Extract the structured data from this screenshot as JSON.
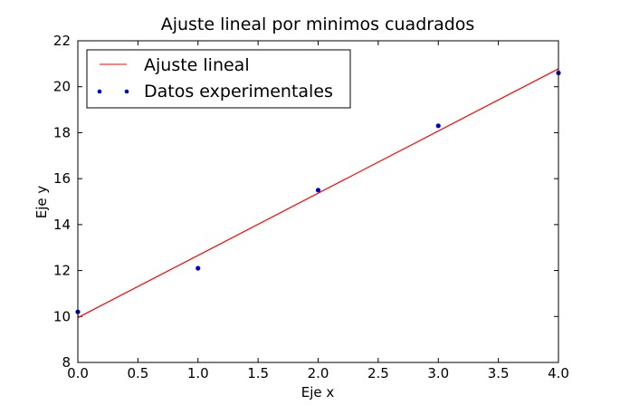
{
  "chart_data": {
    "type": "line",
    "title": "Ajuste lineal por minimos cuadrados",
    "xlabel": "Eje x",
    "ylabel": "Eje y",
    "xlim": [
      0,
      4
    ],
    "ylim": [
      8,
      22
    ],
    "xticks": [
      "0.0",
      "0.5",
      "1.0",
      "1.5",
      "2.0",
      "2.5",
      "3.0",
      "3.5",
      "4.0"
    ],
    "yticks": [
      "8",
      "10",
      "12",
      "14",
      "16",
      "18",
      "20",
      "22"
    ],
    "grid": false,
    "legend_position": "top-left",
    "series": [
      {
        "name": "Ajuste lineal",
        "kind": "line",
        "color": "#ff0000",
        "x": [
          0,
          4
        ],
        "y": [
          9.95,
          20.78
        ]
      },
      {
        "name": "Datos experimentales",
        "kind": "scatter",
        "color": "#0000cc",
        "x": [
          0,
          1,
          2,
          3,
          4
        ],
        "y": [
          10.2,
          12.1,
          15.5,
          18.3,
          20.6
        ]
      }
    ]
  }
}
